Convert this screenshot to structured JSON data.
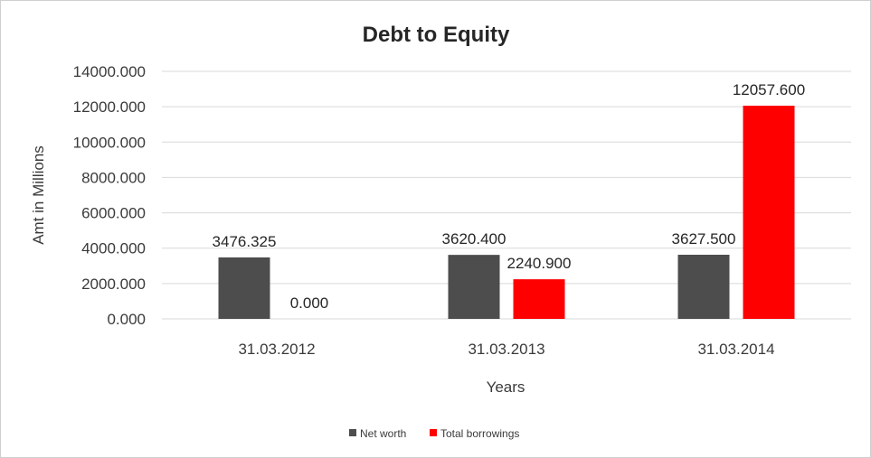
{
  "chart_data": {
    "type": "bar",
    "title": "Debt to Equity",
    "xlabel": "Years",
    "ylabel": "Amt in Millions",
    "categories": [
      "31.03.2012",
      "31.03.2013",
      "31.03.2014"
    ],
    "series": [
      {
        "name": "Net worth",
        "color": "#4d4d4d",
        "values": [
          3476.325,
          3620.4,
          3627.5
        ],
        "labels": [
          "3476.325",
          "3620.400",
          "3627.500"
        ]
      },
      {
        "name": "Total borrowings",
        "color": "#ff0000",
        "values": [
          0.0,
          2240.9,
          12057.6
        ],
        "labels": [
          "0.000",
          "2240.900",
          "12057.600"
        ]
      }
    ],
    "ylim": [
      0,
      14000
    ],
    "yticks": [
      "0.000",
      "2000.000",
      "4000.000",
      "6000.000",
      "8000.000",
      "10000.000",
      "12000.000",
      "14000.000"
    ],
    "grid": true,
    "legend_position": "bottom"
  }
}
